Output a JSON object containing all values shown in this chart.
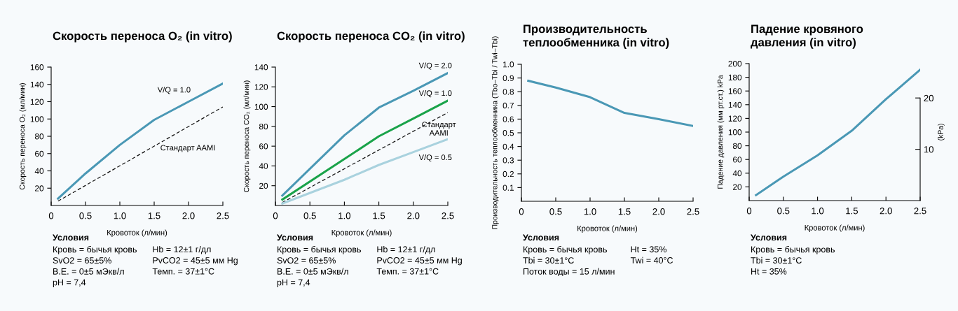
{
  "chart_data": [
    {
      "type": "line",
      "title": "Скорость переноса O₂ (in vitro)",
      "xlabel": "Кровоток (л/мин)",
      "ylabel": "Скорость переноса O₂ (мл/мин)",
      "xlim": [
        0,
        2.5
      ],
      "xticks": [
        0,
        {
          "value": 0.5,
          "label": "0.5"
        },
        {
          "value": 1.0,
          "label": "1.0"
        },
        {
          "value": 1.5,
          "label": "1.5"
        },
        {
          "value": 2.0,
          "label": "2.0"
        },
        {
          "value": 2.5,
          "label": "2.5"
        }
      ],
      "ylim": [
        0,
        160
      ],
      "yticks": [
        20,
        40,
        60,
        80,
        100,
        120,
        140,
        160
      ],
      "grid": false,
      "legend": false,
      "marker": "none",
      "series": [
        {
          "name": "V/Q = 1.0",
          "color": "#4a98b5",
          "line_style": "solid",
          "x": [
            0.1,
            0.5,
            1.0,
            1.5,
            2.0,
            2.5
          ],
          "values": [
            8,
            37,
            70,
            99,
            120,
            141
          ]
        },
        {
          "name": "Стандарт AAMI",
          "color": "#111111",
          "line_style": "dashed",
          "x": [
            0.1,
            2.5
          ],
          "values": [
            5,
            114
          ]
        }
      ],
      "annotations": [
        "Условия",
        "Кровь = бычья кровь\nSvO2 = 65±5%\nВ.Е. = 0±5 мЭкв/л\npH = 7,4",
        "Hb = 12±1 г/дл\nPvCO2 = 45±5 мм Hg\nТемп. = 37±1°C"
      ]
    },
    {
      "type": "line",
      "title": "Скорость переноса CO₂ (in vitro)",
      "xlabel": "Кровоток (л/мин)",
      "ylabel": "Скорость переноса CO₂ (мл/мин)",
      "xlim": [
        0,
        2.5
      ],
      "xticks": [
        0,
        {
          "value": 0.5,
          "label": "0.5"
        },
        {
          "value": 1.0,
          "label": "1.0"
        },
        {
          "value": 1.5,
          "label": "1.5"
        },
        {
          "value": 2.0,
          "label": "2.0"
        },
        {
          "value": 2.5,
          "label": "2.5"
        }
      ],
      "ylim": [
        0,
        140
      ],
      "yticks": [
        20,
        40,
        60,
        80,
        100,
        120,
        140
      ],
      "grid": false,
      "legend": false,
      "marker": "none",
      "series": [
        {
          "name": "V/Q = 2.0",
          "color": "#4a98b5",
          "line_style": "solid",
          "x": [
            0.1,
            1.0,
            1.5,
            2.0,
            2.5
          ],
          "values": [
            10,
            71,
            99,
            116,
            134
          ]
        },
        {
          "name": "V/Q = 1.0",
          "color": "#1aa34a",
          "line_style": "solid",
          "x": [
            0.1,
            1.0,
            1.5,
            2.0,
            2.5
          ],
          "values": [
            6,
            47,
            70,
            88,
            106
          ]
        },
        {
          "name": "Стандарт\nAAMI",
          "color": "#111111",
          "line_style": "dashed",
          "x": [
            0.1,
            2.5
          ],
          "values": [
            3,
            94
          ]
        },
        {
          "name": "V/Q = 0.5",
          "color": "#a9d2de",
          "line_style": "solid",
          "x": [
            0.1,
            1.0,
            1.5,
            2.0,
            2.5
          ],
          "values": [
            2,
            26,
            41,
            54,
            67
          ]
        }
      ],
      "annotations": [
        "Условия",
        "Кровь = бычья кровь\nSvO2 = 65±5%\nВ.Е. = 0±5 мЭкв/л\npH = 7,4",
        "Hb = 12±1 г/дл\nPvCO2 = 45±5 мм Hg\nТемп. = 37±1°C"
      ]
    },
    {
      "type": "line",
      "title": "Производительность\nтеплообменника (in vitro)",
      "xlabel": "Кровоток (л/мин)",
      "ylabel": "Производительность теплообменника (Tbo–Tbi / Twi–Tbi)",
      "xlim": [
        0,
        2.5
      ],
      "xticks": [
        0,
        {
          "value": 0.5,
          "label": "0.5"
        },
        {
          "value": 1.0,
          "label": "1.0"
        },
        {
          "value": 1.5,
          "label": "1.5"
        },
        {
          "value": 2.0,
          "label": "2.0"
        },
        {
          "value": 2.5,
          "label": "2.5"
        }
      ],
      "ylim": [
        0,
        1.0
      ],
      "yticks": [
        0.1,
        0.2,
        0.3,
        0.4,
        0.5,
        0.6,
        0.7,
        0.8,
        0.9,
        {
          "value": 1.0,
          "label": "1.0"
        }
      ],
      "grid": false,
      "legend": false,
      "marker": "none",
      "series": [
        {
          "color": "#4a98b5",
          "line_style": "solid",
          "x": [
            0.1,
            0.5,
            1.0,
            1.5,
            2.0,
            2.5
          ],
          "values": [
            0.88,
            0.83,
            0.76,
            0.645,
            0.6,
            0.55
          ]
        }
      ],
      "annotations": [
        "Условия",
        "Кровь = бычья кровь\nTbi = 30±1°C\nПоток воды = 15 л/мин",
        "Ht = 35%\nTwi = 40°C"
      ]
    },
    {
      "type": "line",
      "title": "Падение кровяного\nдавления (in vitro)",
      "xlabel": "Кровоток (л/мин)",
      "ylabel": "Падение давления (мм рт.ст.) kPa",
      "y2label": "(kPa)",
      "xlim": [
        0,
        2.5
      ],
      "xticks": [
        0,
        {
          "value": 0.5,
          "label": "0.5"
        },
        {
          "value": 1.0,
          "label": "1.0"
        },
        {
          "value": 1.5,
          "label": "1.5"
        },
        {
          "value": 2.0,
          "label": "2.0"
        },
        {
          "value": 2.5,
          "label": "2.5"
        }
      ],
      "ylim": [
        0,
        200
      ],
      "yticks": [
        20,
        40,
        60,
        80,
        100,
        120,
        140,
        160,
        180,
        200
      ],
      "y2lim": [
        0,
        26.7
      ],
      "y2ticks": [
        10,
        20
      ],
      "grid": false,
      "legend": false,
      "marker": "none",
      "series": [
        {
          "color": "#4a98b5",
          "line_style": "solid",
          "x": [
            0.1,
            0.5,
            1.0,
            1.5,
            2.0,
            2.5
          ],
          "values": [
            8,
            35,
            66,
            102,
            148,
            191
          ]
        }
      ],
      "annotations": [
        "Условия",
        "Кровь = бычья кровь\nTbi = 30±1°C\nHt = 35%"
      ]
    }
  ]
}
